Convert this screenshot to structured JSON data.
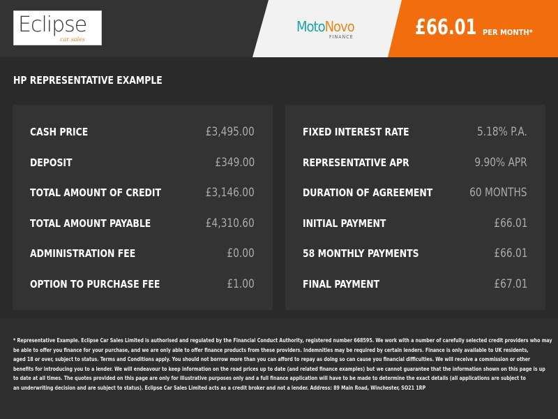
{
  "header": {
    "logo_text": "Eclipse",
    "logo_sub": "car sales",
    "finance_brand_1": "Moto",
    "finance_brand_2": "Novo",
    "finance_sub": "FINANCE",
    "monthly_price": "£66.01",
    "per_month": "PER MONTH*"
  },
  "colors": {
    "accent": "#f26d0d",
    "background": "#2a2a2a",
    "panel": "#333333"
  },
  "title": "HP REPRESENTATIVE EXAMPLE",
  "left_panel": [
    {
      "label": "CASH PRICE",
      "value": "£3,495.00"
    },
    {
      "label": "DEPOSIT",
      "value": "£349.00"
    },
    {
      "label": "TOTAL AMOUNT OF CREDIT",
      "value": "£3,146.00"
    },
    {
      "label": "TOTAL AMOUNT PAYABLE",
      "value": "£4,310.60"
    },
    {
      "label": "ADMINISTRATION FEE",
      "value": "£0.00"
    },
    {
      "label": "OPTION TO PURCHASE FEE",
      "value": "£1.00"
    }
  ],
  "right_panel": [
    {
      "label": "FIXED INTEREST RATE",
      "value": "5.18% P.A."
    },
    {
      "label": "REPRESENTATIVE APR",
      "value": "9.90% APR"
    },
    {
      "label": "DURATION OF AGREEMENT",
      "value": "60 MONTHS"
    },
    {
      "label": "INITIAL PAYMENT",
      "value": "£66.01"
    },
    {
      "label": "58 MONTHLY PAYMENTS",
      "value": "£66.01"
    },
    {
      "label": "FINAL PAYMENT",
      "value": "£67.01"
    }
  ],
  "disclaimer": [
    "* Representative Example. Eclipse Car Sales Limited is authorised and regulated by the Financial Conduct Authority, registered number 668595. We work with a number of carefully selected credit providers who may",
    "be able to offer you finance for your purchase, and we are only able to offer finance products from these providers. Indemnities may be required by certain lenders. Finance is only available to UK residents,",
    "aged 18 or over, subject to status. Terms and Conditions apply. You should not borrow more than you can afford to repay as doing so can cause you financial difficulties. We will receive a commission or other",
    "benefits for introducing you to a lender. We will endeavour to keep information on the road prices up to date (and related finance examples) but we cannot guarantee that the information shown on this page is up",
    "to date at all times. The quotes provided on this page are only for illustrative purposes only and a full finance application will have to be made to determine the exact details (all applications are subject to",
    "an underwriting decision and are subject to status). Eclipse Car Sales Limited acts as a credit broker and not a lender. Address: 89 Main Road, Winchester, SO21 1RP"
  ]
}
